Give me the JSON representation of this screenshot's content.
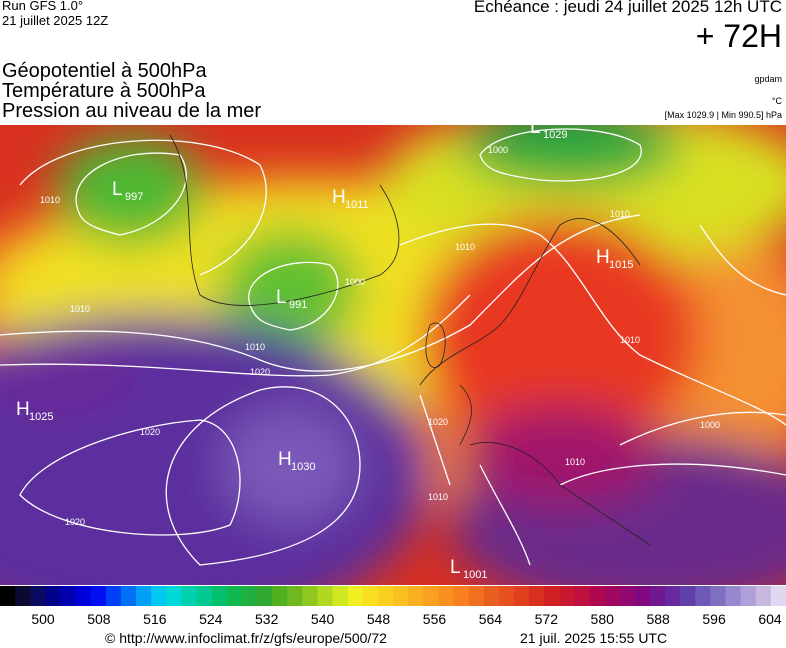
{
  "header": {
    "run": "Run GFS 1.0°",
    "run_date": "21 juillet 2025 12Z",
    "forecast": "Echéance : jeudi 24 juillet 2025 12h UTC",
    "lead": "+ 72H",
    "fields": [
      "Géopotentiel à 500hPa",
      "Température à 500hPa",
      "Pression au niveau de la mer"
    ],
    "units": [
      "gpdam",
      "°C",
      "[Max 1029.9 | Min 990.5] hPa"
    ]
  },
  "map": {
    "centers": [
      {
        "kind": "L",
        "value": 997
      },
      {
        "kind": "H",
        "value": 1011
      },
      {
        "kind": "L",
        "value": 991
      },
      {
        "kind": "L",
        "value": 1029
      },
      {
        "kind": "H",
        "value": 1015
      },
      {
        "kind": "H",
        "value": 1025
      },
      {
        "kind": "H",
        "value": 1030
      },
      {
        "kind": "L",
        "value": 1001
      }
    ],
    "isobar_labels": [
      "1010",
      "1010",
      "1010",
      "1020",
      "1020",
      "1020",
      "1000",
      "1000",
      "1010",
      "1010",
      "1020",
      "1010",
      "1010",
      "1010",
      "1000"
    ]
  },
  "colorbar": {
    "ticks": [
      500,
      508,
      516,
      524,
      532,
      540,
      548,
      556,
      564,
      572,
      580,
      588,
      596,
      604
    ],
    "colors": [
      "#000000",
      "#0a0a30",
      "#0a0a60",
      "#00008a",
      "#0000b0",
      "#0000d8",
      "#0010f0",
      "#0040f8",
      "#0070f8",
      "#00a0f8",
      "#00c8f0",
      "#00d8d8",
      "#00d0b0",
      "#00c890",
      "#00c070",
      "#10b850",
      "#20b040",
      "#30a830",
      "#50b020",
      "#70b820",
      "#90c820",
      "#b0d820",
      "#d0e820",
      "#f0f020",
      "#f8e020",
      "#f8d020",
      "#f8c020",
      "#f8b020",
      "#f8a020",
      "#f89020",
      "#f88020",
      "#f07020",
      "#e86020",
      "#e85020",
      "#e04020",
      "#d83020",
      "#d02020",
      "#c81830",
      "#c01040",
      "#b00850",
      "#a00860",
      "#900870",
      "#800880",
      "#701890",
      "#6828a0",
      "#6040a8",
      "#7058b8",
      "#8070c0",
      "#9888d0",
      "#b0a0d8",
      "#c8b8e0",
      "#e0d8f0"
    ]
  },
  "footer": {
    "source": "© http://www.infoclimat.fr/z/gfs/europe/500/72",
    "generated": "21 juil. 2025 15:55 UTC"
  }
}
